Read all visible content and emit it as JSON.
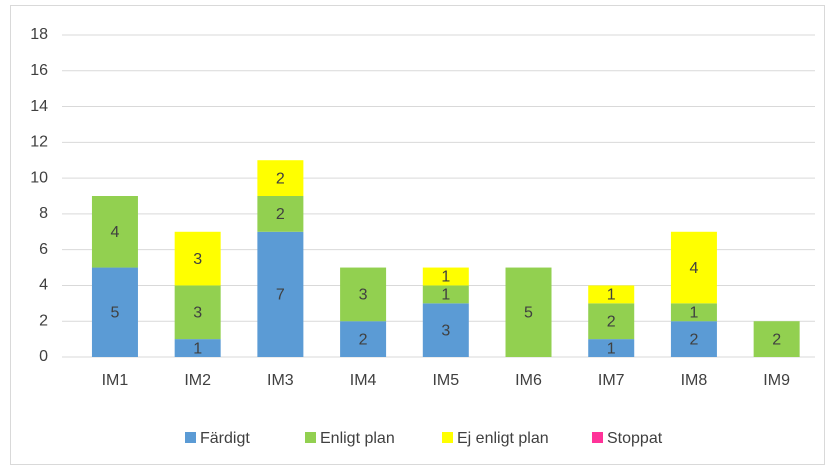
{
  "chart_data": {
    "type": "stacked_bar",
    "categories": [
      "IM1",
      "IM2",
      "IM3",
      "IM4",
      "IM5",
      "IM6",
      "IM7",
      "IM8",
      "IM9"
    ],
    "series": [
      {
        "name": "Färdigt",
        "color": "#5b9bd5",
        "values": [
          5,
          1,
          7,
          2,
          3,
          null,
          1,
          2,
          null
        ]
      },
      {
        "name": "Enligt plan",
        "color": "#92d050",
        "values": [
          4,
          3,
          2,
          3,
          1,
          5,
          2,
          1,
          2
        ]
      },
      {
        "name": "Ej enligt plan",
        "color": "#ffff00",
        "values": [
          null,
          3,
          2,
          null,
          1,
          null,
          1,
          4,
          null
        ]
      },
      {
        "name": "Stoppat",
        "color": "#ff3399",
        "values": [
          null,
          null,
          null,
          null,
          null,
          null,
          null,
          null,
          null
        ]
      }
    ],
    "ylim": [
      0,
      18
    ],
    "yticks": [
      0,
      2,
      4,
      6,
      8,
      10,
      12,
      14,
      16,
      18
    ],
    "grid": true,
    "legend": "bottom"
  }
}
